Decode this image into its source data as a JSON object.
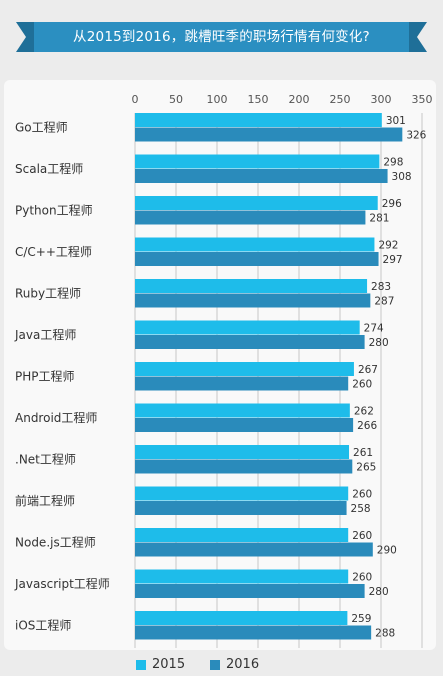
{
  "title": "从2015到2016，跳槽旺季的职场行情有何变化?",
  "colors": {
    "banner": "#2b8fc1",
    "banner_dark": "#1f6f98",
    "series_2015": "#1ebcea",
    "series_2016": "#2a8bbb",
    "grid": "#c8c8c8",
    "text": "#333333"
  },
  "chart_data": {
    "type": "bar",
    "orientation": "horizontal",
    "categories": [
      "Go工程师",
      "Scala工程师",
      "Python工程师",
      "C/C++工程师",
      "Ruby工程师",
      "Java工程师",
      "PHP工程师",
      "Android工程师",
      ".Net工程师",
      "前端工程师",
      "Node.js工程师",
      "Javascript工程师",
      "iOS工程师"
    ],
    "series": [
      {
        "name": "2015",
        "values": [
          301,
          298,
          296,
          292,
          283,
          274,
          267,
          262,
          261,
          260,
          260,
          260,
          259
        ]
      },
      {
        "name": "2016",
        "values": [
          326,
          308,
          281,
          297,
          287,
          280,
          260,
          266,
          265,
          258,
          290,
          280,
          288
        ]
      }
    ],
    "xlim": [
      0,
      350
    ],
    "xticks": [
      0,
      50,
      100,
      150,
      200,
      250,
      300,
      350
    ],
    "grid": true,
    "legend_position": "bottom",
    "data_labels": true
  }
}
